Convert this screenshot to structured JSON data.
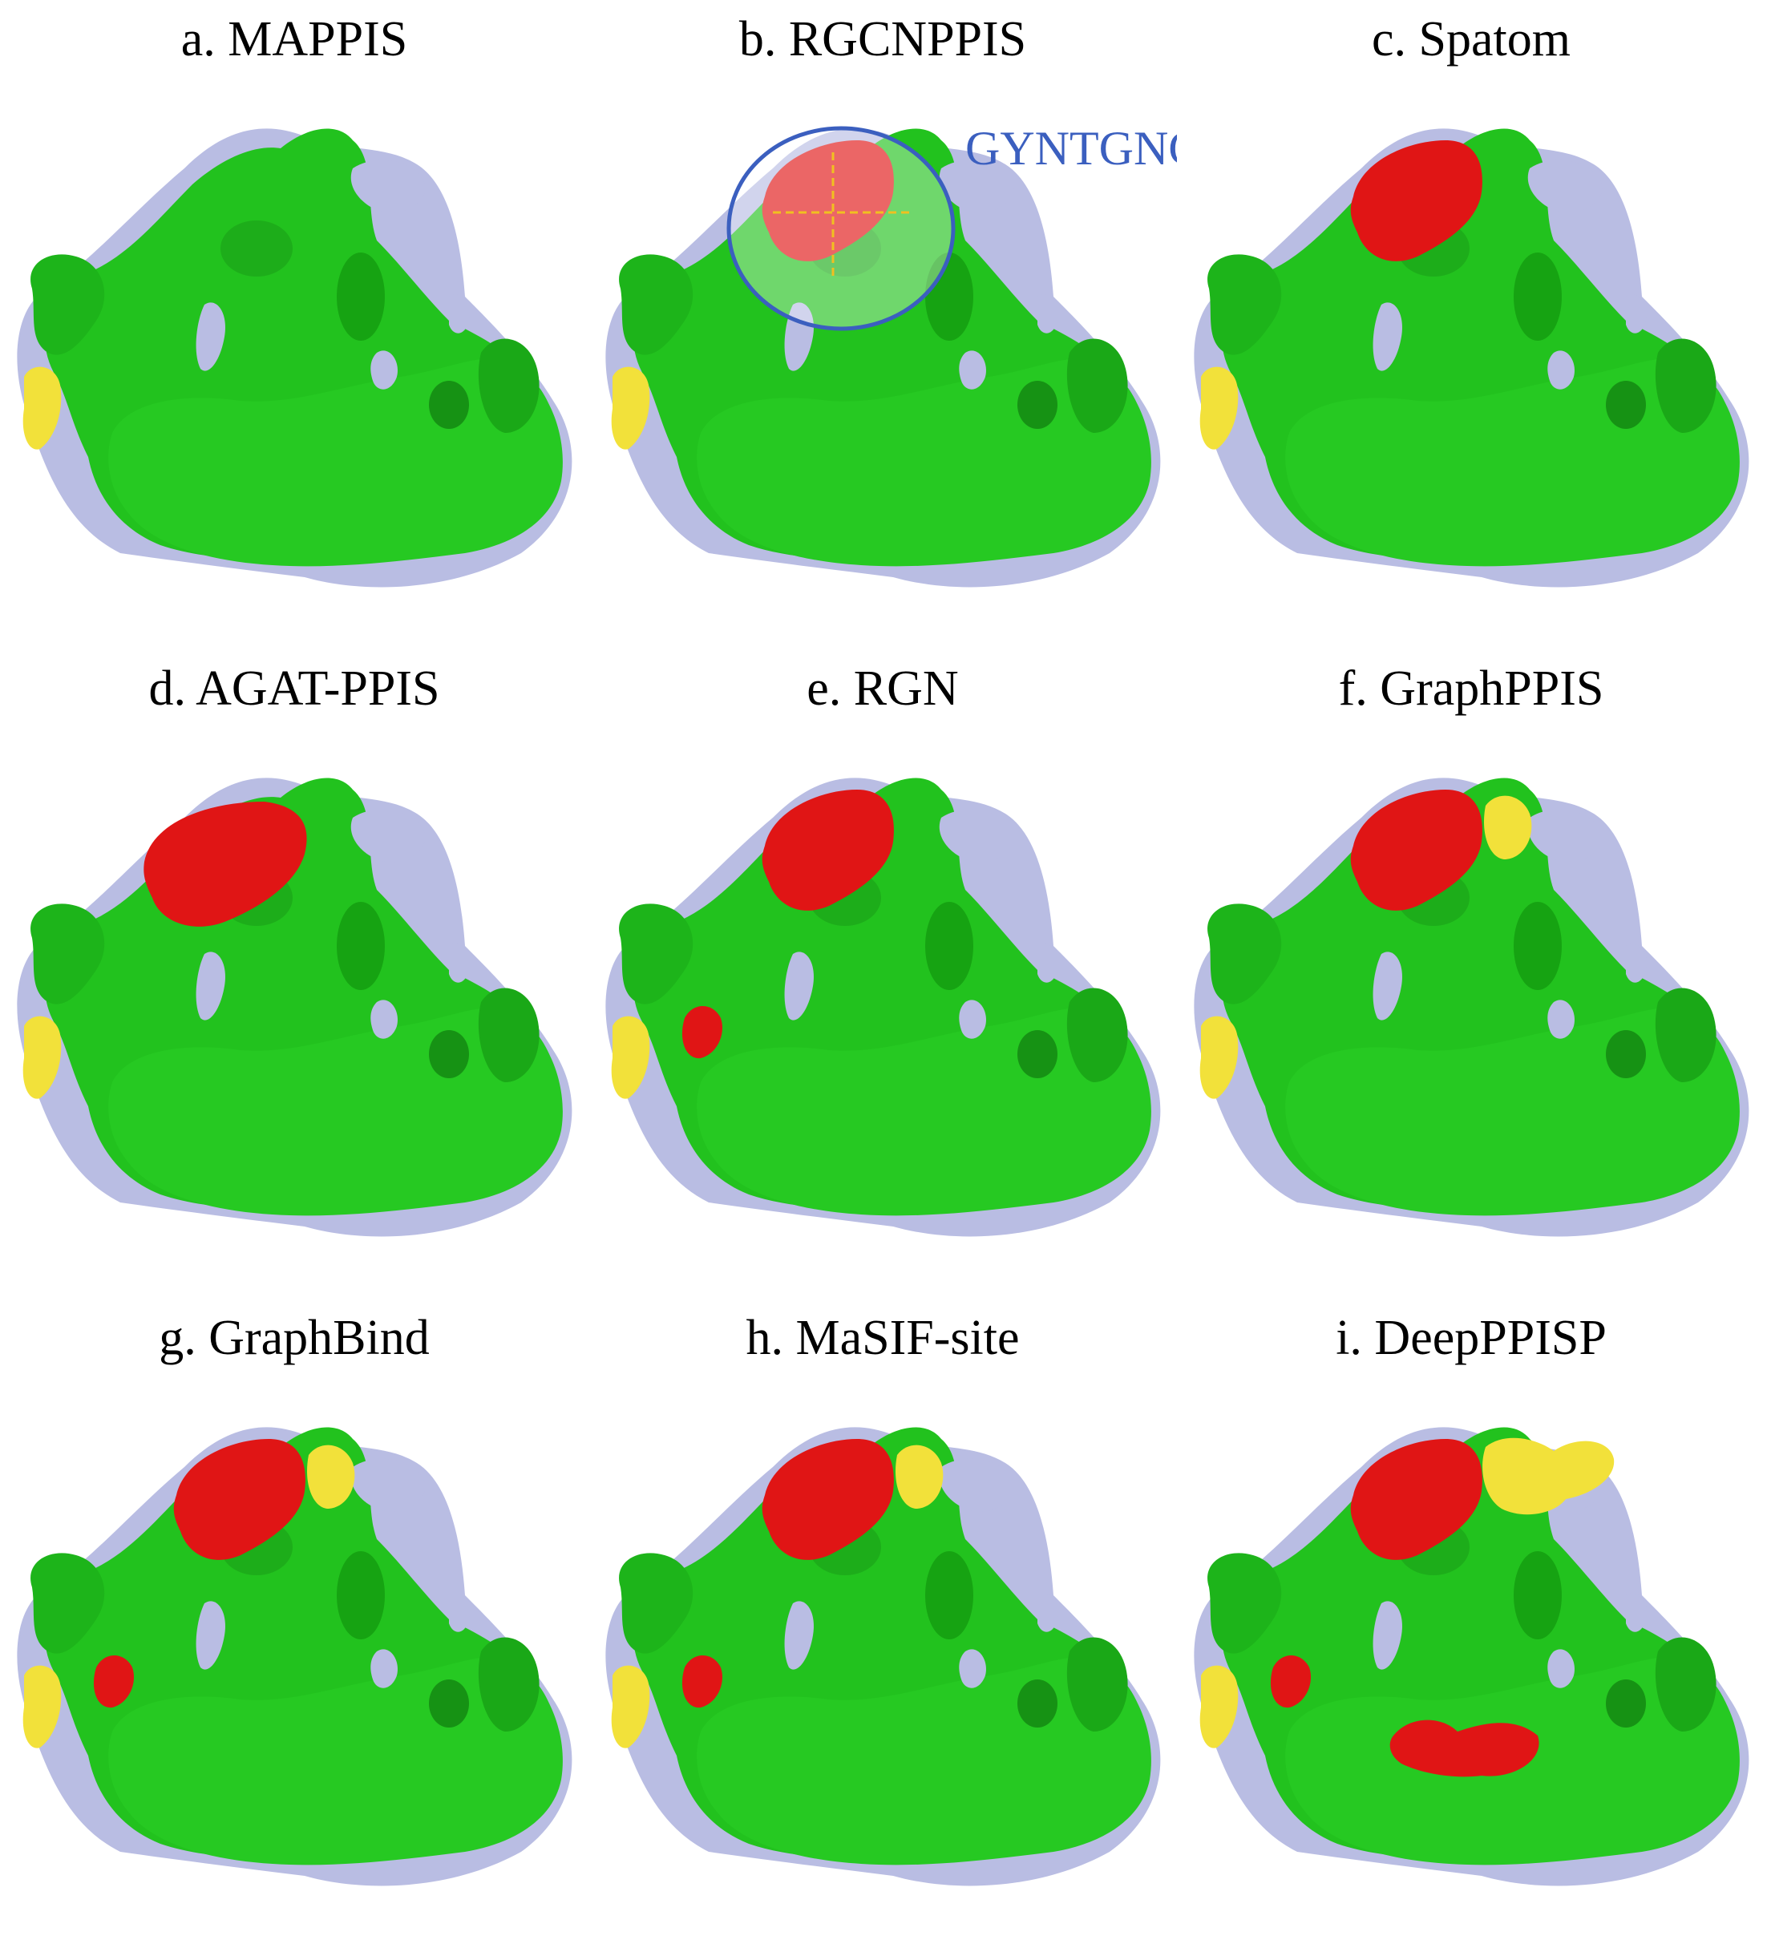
{
  "figure": {
    "panels": [
      {
        "id": "a",
        "title": "a. MAPPIS",
        "highlights": []
      },
      {
        "id": "b",
        "title": "b. RGCNPPIS",
        "highlights": [
          "top-red"
        ],
        "annotation": "GYNTGNG"
      },
      {
        "id": "c",
        "title": "c. Spatom",
        "highlights": [
          "top-red"
        ]
      },
      {
        "id": "d",
        "title": "d. AGAT-PPIS",
        "highlights": [
          "top-red-left"
        ]
      },
      {
        "id": "e",
        "title": "e. RGN",
        "highlights": [
          "top-red",
          "left-red"
        ]
      },
      {
        "id": "f",
        "title": "f. GraphPPIS",
        "highlights": [
          "top-red",
          "top-yellow"
        ]
      },
      {
        "id": "g",
        "title": "g. GraphBind",
        "highlights": [
          "top-red",
          "top-yellow",
          "left-red"
        ]
      },
      {
        "id": "h",
        "title": "h. MaSIF-site",
        "highlights": [
          "top-red",
          "top-yellow",
          "left-red"
        ]
      },
      {
        "id": "i",
        "title": "i. DeepPPISP",
        "highlights": [
          "top-red",
          "top-yellow-big",
          "left-red",
          "center-red"
        ]
      }
    ]
  },
  "colors": {
    "surface_green": "#22c21e",
    "surface_dark_green": "#139e10",
    "surface_lavender": "#b9bde3",
    "highlight_red": "#e01515",
    "highlight_yellow": "#f2e13a",
    "annotation_blue": "#3b5fbf",
    "crosshair": "#f0c020"
  }
}
